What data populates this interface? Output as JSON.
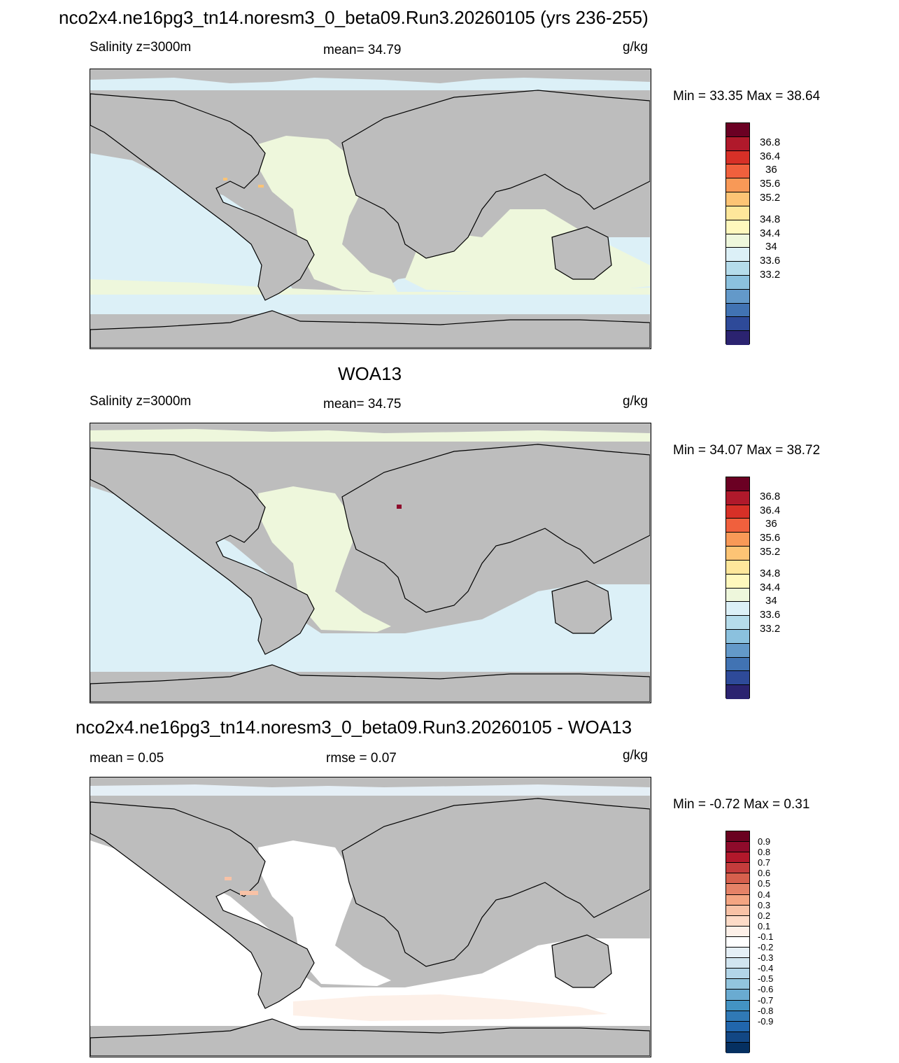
{
  "title": "nco2x4.ne16pg3_tn14.noresm3_0_beta09.Run3.20260105 (yrs 236-255)",
  "panels": [
    {
      "heading": "",
      "left_label": "Salinity z=3000m",
      "center_label": "mean=  34.79",
      "units": "g/kg",
      "minmax": "Min =  33.35 Max =  38.64",
      "colorbar": {
        "ticks": [
          "36.8",
          "36.4",
          "36",
          "35.6",
          "35.2",
          "34.8",
          "34.4",
          "34",
          "33.6",
          "33.2"
        ],
        "colors": [
          "#6b0023",
          "#b0192b",
          "#d73027",
          "#f0603d",
          "#f89957",
          "#fdc475",
          "#fee79b",
          "#fff8bd",
          "#eef7dc",
          "#dcf0f7",
          "#b5dceb",
          "#8bc1de",
          "#6399c9",
          "#4173b3",
          "#2e4a99",
          "#2b2370"
        ]
      }
    },
    {
      "heading": "WOA13",
      "left_label": "Salinity z=3000m",
      "center_label": "mean=  34.75",
      "units": "g/kg",
      "minmax": "Min =  34.07 Max =  38.72",
      "colorbar": {
        "ticks": [
          "36.8",
          "36.4",
          "36",
          "35.6",
          "35.2",
          "34.8",
          "34.4",
          "34",
          "33.6",
          "33.2"
        ],
        "colors": [
          "#6b0023",
          "#b0192b",
          "#d73027",
          "#f0603d",
          "#f89957",
          "#fdc475",
          "#fee79b",
          "#fff8bd",
          "#eef7dc",
          "#dcf0f7",
          "#b5dceb",
          "#8bc1de",
          "#6399c9",
          "#4173b3",
          "#2e4a99",
          "#2b2370"
        ]
      }
    },
    {
      "heading": "nco2x4.ne16pg3_tn14.noresm3_0_beta09.Run3.20260105 - WOA13",
      "left_label": "mean =   0.05",
      "center_label": "rmse =   0.07",
      "units": "g/kg",
      "minmax": "Min =  -0.72 Max =   0.31",
      "colorbar": {
        "ticks": [
          "0.9",
          "0.8",
          "0.7",
          "0.6",
          "0.5",
          "0.4",
          "0.3",
          "0.2",
          "0.1",
          "-0.1",
          "-0.2",
          "-0.3",
          "-0.4",
          "-0.5",
          "-0.6",
          "-0.7",
          "-0.8",
          "-0.9"
        ],
        "colors": [
          "#6a0220",
          "#8e0b2b",
          "#b2182b",
          "#c43c3c",
          "#d6604d",
          "#e58267",
          "#f4a582",
          "#f8c2a6",
          "#fddbc7",
          "#fdf0e8",
          "#ffffff",
          "#e5eff6",
          "#d1e5f0",
          "#b2d5e8",
          "#92c5de",
          "#6aabd1",
          "#4393c3",
          "#3079b6",
          "#2166ac",
          "#124784",
          "#053061"
        ]
      }
    }
  ],
  "map_fills": {
    "land": "#bdbdbd",
    "panel1_ocean": "#dcf0f7",
    "panel1_band": "#eef7dc",
    "panel2_ocean": "#dcf0f7",
    "panel2_band": "#eef7dc",
    "panel3_ocean": "#ffffff",
    "panel3_band": "#fdf0e8",
    "panel3_arctic": "#e5eff6"
  }
}
